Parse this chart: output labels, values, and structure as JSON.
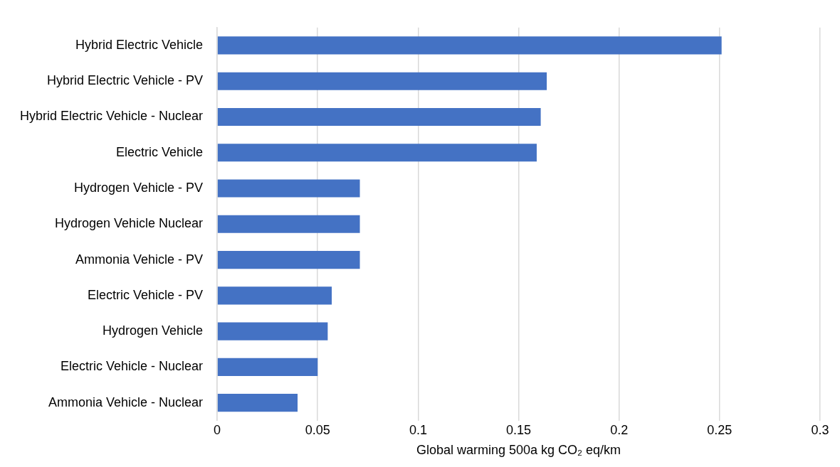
{
  "chart_data": {
    "type": "bar",
    "orientation": "horizontal",
    "xlabel": "Global warming 500a kg CO₂ eq/km",
    "categories": [
      "Hybrid Electric Vehicle",
      "Hybrid Electric Vehicle - PV",
      "Hybrid Electric Vehicle - Nuclear",
      "Electric Vehicle",
      "Hydrogen Vehicle - PV",
      "Hydrogen Vehicle Nuclear",
      "Ammonia Vehicle - PV",
      "Electric Vehicle - PV",
      "Hydrogen Vehicle",
      "Electric Vehicle - Nuclear",
      "Ammonia Vehicle - Nuclear"
    ],
    "values": [
      0.251,
      0.164,
      0.161,
      0.159,
      0.071,
      0.071,
      0.071,
      0.057,
      0.055,
      0.05,
      0.04
    ],
    "color": "#4472c4",
    "xlim": [
      0,
      0.3
    ],
    "xticks": [
      0,
      0.05,
      0.1,
      0.15,
      0.2,
      0.25,
      0.3
    ],
    "grid": "x",
    "legend": false
  }
}
